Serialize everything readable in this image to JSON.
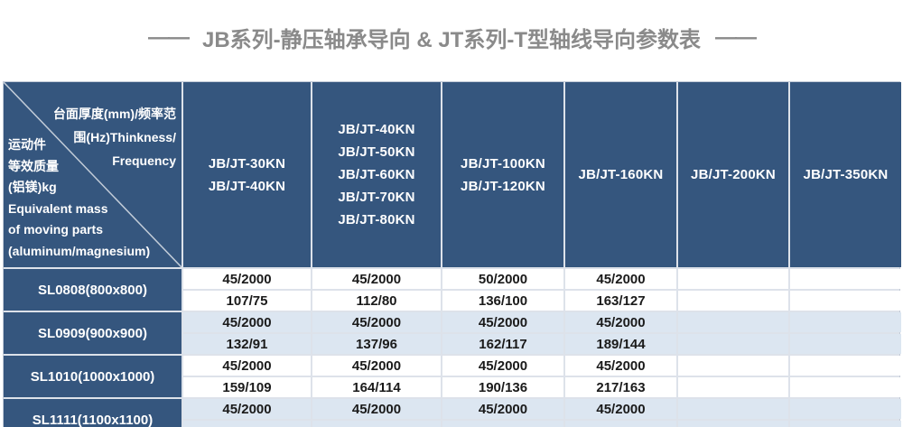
{
  "page": {
    "title": "JB系列-静压轴承导向 & JT系列-T型轴线导向参数表",
    "title_dash": "——"
  },
  "colors": {
    "header_blue": "#35567E",
    "row_alt_blue": "#DCE6F1",
    "row_white": "#FFFFFF",
    "gridline": "#DDE2EA",
    "title_gray": "#8A8A8A",
    "value_text": "#1A1A1A"
  },
  "table": {
    "corner": {
      "top_right_lines": [
        "台面厚度(mm)/频率范",
        "围(Hz)Thinkness/",
        "Frequency"
      ],
      "bottom_left_lines": [
        "运动件",
        "等效质量",
        "(铝镁)kg",
        "Equivalent mass",
        "of moving parts",
        "(aluminum/magnesium)"
      ]
    },
    "column_headers": [
      {
        "lines": [
          "JB/JT-30KN",
          "JB/JT-40KN"
        ]
      },
      {
        "lines": [
          "JB/JT-40KN",
          "JB/JT-50KN",
          "JB/JT-60KN",
          "JB/JT-70KN",
          "JB/JT-80KN"
        ]
      },
      {
        "lines": [
          "JB/JT-100KN",
          "JB/JT-120KN"
        ]
      },
      {
        "lines": [
          "JB/JT-160KN"
        ]
      },
      {
        "lines": [
          "JB/JT-200KN"
        ]
      },
      {
        "lines": [
          "JB/JT-350KN"
        ]
      }
    ],
    "rows": [
      {
        "model": "SL0808(800x800)",
        "thickness_frequency": [
          "45/2000",
          "45/2000",
          "50/2000",
          "45/2000",
          "",
          ""
        ],
        "mass_values": [
          "107/75",
          "112/80",
          "136/100",
          "163/127",
          "",
          ""
        ]
      },
      {
        "model": "SL0909(900x900)",
        "thickness_frequency": [
          "45/2000",
          "45/2000",
          "45/2000",
          "45/2000",
          "",
          ""
        ],
        "mass_values": [
          "132/91",
          "137/96",
          "162/117",
          "189/144",
          "",
          ""
        ]
      },
      {
        "model": "SL1010(1000x1000)",
        "thickness_frequency": [
          "45/2000",
          "45/2000",
          "45/2000",
          "45/2000",
          "",
          ""
        ],
        "mass_values": [
          "159/109",
          "164/114",
          "190/136",
          "217/163",
          "",
          ""
        ]
      },
      {
        "model": "SL1111(1100x1100)",
        "thickness_frequency": [
          "45/2000",
          "45/2000",
          "45/2000",
          "45/2000",
          "",
          ""
        ],
        "mass_values": [
          "",
          "",
          "",
          "",
          "",
          ""
        ]
      }
    ]
  }
}
